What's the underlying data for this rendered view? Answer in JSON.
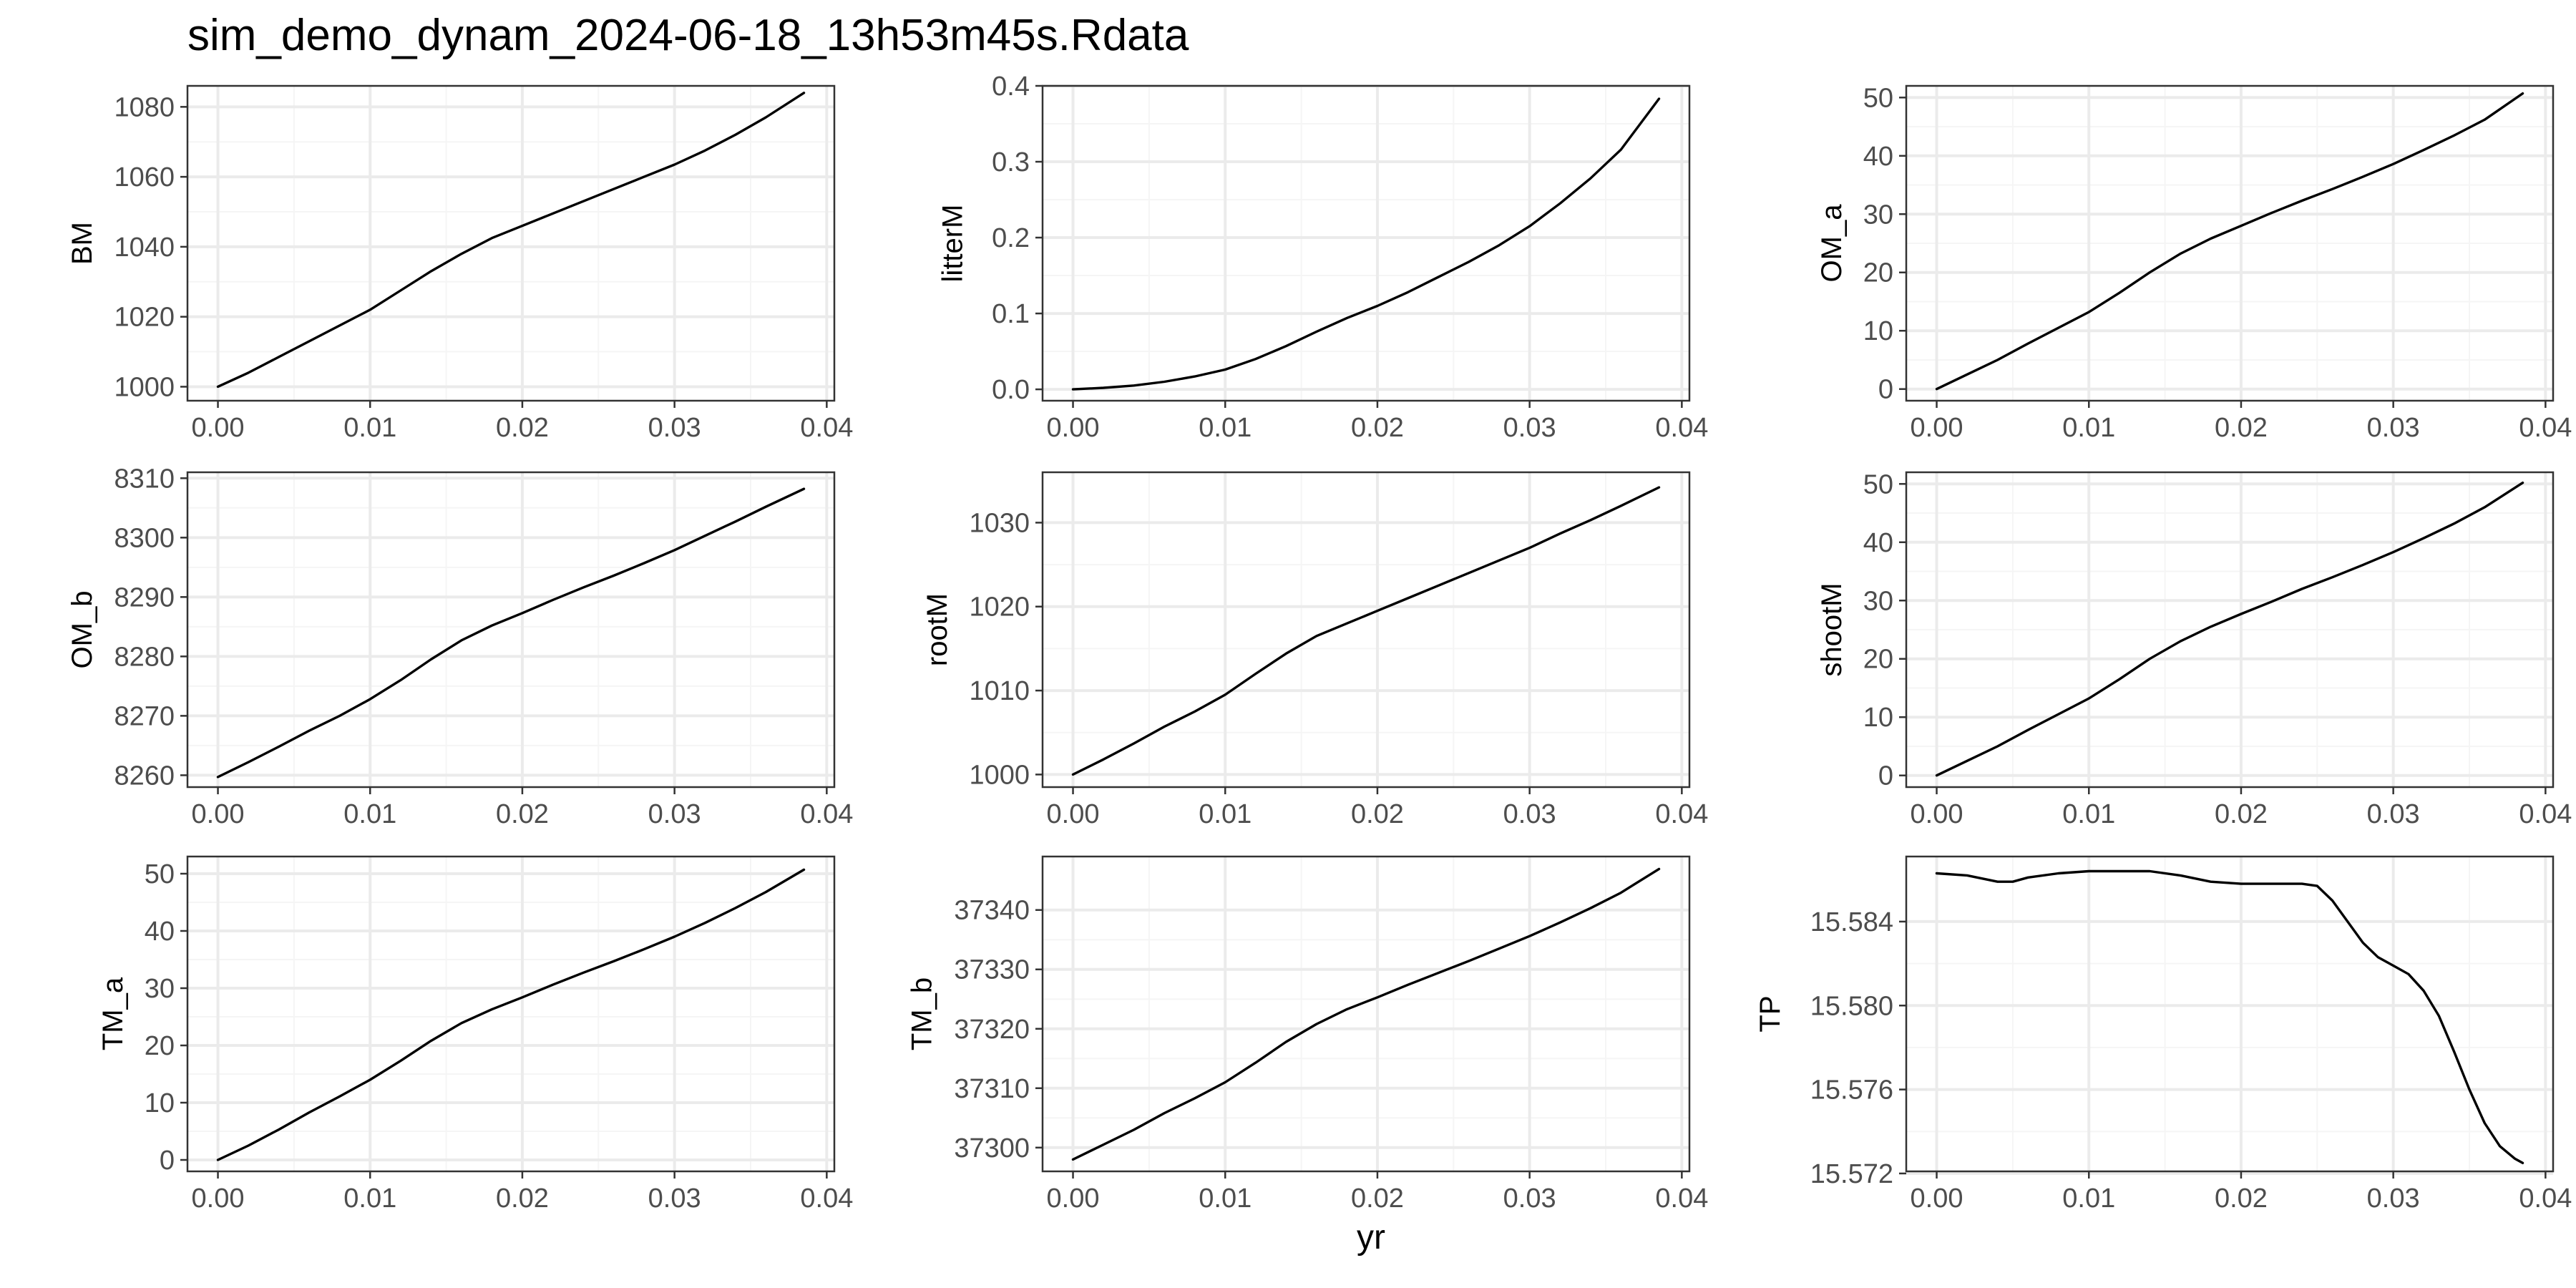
{
  "title": "sim_demo_dynam_2024-06-18_13h53m45s.Rdata",
  "colors": {
    "panel_background": "#ffffff",
    "panel_border": "#333333",
    "grid_major": "#ebebeb",
    "grid_minor": "#f5f5f5",
    "line": "#000000",
    "tick_text": "#4d4d4d"
  },
  "chart_data": {
    "type": "line",
    "layout": "facet-grid-3x3",
    "xlabel": "yr",
    "shared_x": {
      "ticks": [
        0.0,
        0.01,
        0.02,
        0.03,
        0.04
      ],
      "tick_labels": [
        "0.00",
        "0.01",
        "0.02",
        "0.03",
        "0.04"
      ],
      "xlim": [
        -0.002,
        0.0405
      ]
    },
    "panels": [
      {
        "ylabel": "BM",
        "ylim": [
          996,
          1086
        ],
        "yticks": [
          1000,
          1020,
          1040,
          1060,
          1080
        ],
        "ytick_labels": [
          "1000",
          "1020",
          "1040",
          "1060",
          "1080"
        ],
        "x": [
          0,
          0.002,
          0.004,
          0.006,
          0.008,
          0.01,
          0.012,
          0.014,
          0.016,
          0.018,
          0.02,
          0.022,
          0.024,
          0.026,
          0.028,
          0.03,
          0.032,
          0.034,
          0.036,
          0.0385
        ],
        "y": [
          1000,
          1004,
          1008.5,
          1013,
          1017.5,
          1022,
          1027.5,
          1033,
          1038,
          1042.5,
          1046,
          1049.5,
          1053,
          1056.5,
          1060,
          1063.5,
          1067.5,
          1072,
          1077,
          1084
        ]
      },
      {
        "ylabel": "litterM",
        "ylim": [
          -0.015,
          0.4
        ],
        "yticks": [
          0.0,
          0.1,
          0.2,
          0.3,
          0.4
        ],
        "ytick_labels": [
          "0.0",
          "0.1",
          "0.2",
          "0.3",
          "0.4"
        ],
        "x": [
          0,
          0.002,
          0.004,
          0.006,
          0.008,
          0.01,
          0.012,
          0.014,
          0.016,
          0.018,
          0.02,
          0.022,
          0.024,
          0.026,
          0.028,
          0.03,
          0.032,
          0.034,
          0.036,
          0.0385
        ],
        "y": [
          0,
          0.002,
          0.005,
          0.01,
          0.017,
          0.026,
          0.04,
          0.057,
          0.076,
          0.094,
          0.11,
          0.128,
          0.148,
          0.168,
          0.19,
          0.215,
          0.245,
          0.278,
          0.316,
          0.383
        ]
      },
      {
        "ylabel": "OM_a",
        "ylim": [
          -2,
          52
        ],
        "yticks": [
          0,
          10,
          20,
          30,
          40,
          50
        ],
        "ytick_labels": [
          "0",
          "10",
          "20",
          "30",
          "40",
          "50"
        ],
        "x": [
          0,
          0.002,
          0.004,
          0.006,
          0.008,
          0.01,
          0.012,
          0.014,
          0.016,
          0.018,
          0.02,
          0.022,
          0.024,
          0.026,
          0.028,
          0.03,
          0.032,
          0.034,
          0.036,
          0.0385
        ],
        "y": [
          0,
          2.5,
          5,
          7.8,
          10.5,
          13.2,
          16.5,
          20,
          23.2,
          25.8,
          28,
          30.2,
          32.3,
          34.3,
          36.4,
          38.6,
          41,
          43.5,
          46.2,
          50.7
        ]
      },
      {
        "ylabel": "OM_b",
        "ylim": [
          8258,
          8311
        ],
        "yticks": [
          8260,
          8270,
          8280,
          8290,
          8300,
          8310
        ],
        "ytick_labels": [
          "8260",
          "8270",
          "8280",
          "8290",
          "8300",
          "8310"
        ],
        "x": [
          0,
          0.002,
          0.004,
          0.006,
          0.008,
          0.01,
          0.012,
          0.014,
          0.016,
          0.018,
          0.02,
          0.022,
          0.024,
          0.026,
          0.028,
          0.03,
          0.032,
          0.034,
          0.036,
          0.0385
        ],
        "y": [
          8259.7,
          8262.2,
          8264.8,
          8267.5,
          8270,
          8272.8,
          8276,
          8279.5,
          8282.7,
          8285.2,
          8287.3,
          8289.5,
          8291.6,
          8293.6,
          8295.7,
          8297.9,
          8300.3,
          8302.7,
          8305.2,
          8308.2
        ]
      },
      {
        "ylabel": "rootM",
        "ylim": [
          998.5,
          1036
        ],
        "yticks": [
          1000,
          1010,
          1020,
          1030
        ],
        "ytick_labels": [
          "1000",
          "1010",
          "1020",
          "1030"
        ],
        "x": [
          0,
          0.002,
          0.004,
          0.006,
          0.008,
          0.01,
          0.012,
          0.014,
          0.016,
          0.018,
          0.02,
          0.022,
          0.024,
          0.026,
          0.028,
          0.03,
          0.032,
          0.034,
          0.036,
          0.0385
        ],
        "y": [
          1000,
          1001.8,
          1003.7,
          1005.7,
          1007.5,
          1009.5,
          1012,
          1014.4,
          1016.5,
          1018,
          1019.5,
          1021,
          1022.5,
          1024,
          1025.5,
          1027,
          1028.7,
          1030.3,
          1032,
          1034.2
        ]
      },
      {
        "ylabel": "shootM",
        "ylim": [
          -2,
          52
        ],
        "yticks": [
          0,
          10,
          20,
          30,
          40,
          50
        ],
        "ytick_labels": [
          "0",
          "10",
          "20",
          "30",
          "40",
          "50"
        ],
        "x": [
          0,
          0.002,
          0.004,
          0.006,
          0.008,
          0.01,
          0.012,
          0.014,
          0.016,
          0.018,
          0.02,
          0.022,
          0.024,
          0.026,
          0.028,
          0.03,
          0.032,
          0.034,
          0.036,
          0.0385
        ],
        "y": [
          0,
          2.5,
          5,
          7.8,
          10.5,
          13.2,
          16.5,
          20,
          23,
          25.5,
          27.7,
          29.8,
          32,
          34,
          36.1,
          38.3,
          40.7,
          43.2,
          46,
          50.2
        ]
      },
      {
        "ylabel": "TM_a",
        "ylim": [
          -2,
          53
        ],
        "yticks": [
          0,
          10,
          20,
          30,
          40,
          50
        ],
        "ytick_labels": [
          "0",
          "10",
          "20",
          "30",
          "40",
          "50"
        ],
        "x": [
          0,
          0.002,
          0.004,
          0.006,
          0.008,
          0.01,
          0.012,
          0.014,
          0.016,
          0.018,
          0.02,
          0.022,
          0.024,
          0.026,
          0.028,
          0.03,
          0.032,
          0.034,
          0.036,
          0.0385
        ],
        "y": [
          0,
          2.5,
          5.3,
          8.3,
          11.1,
          14,
          17.3,
          20.8,
          23.9,
          26.3,
          28.4,
          30.6,
          32.7,
          34.7,
          36.8,
          39,
          41.4,
          44,
          46.8,
          50.7
        ]
      },
      {
        "ylabel": "TM_b",
        "ylim": [
          37296,
          37349
        ],
        "yticks": [
          37300,
          37310,
          37320,
          37330,
          37340
        ],
        "ytick_labels": [
          "37300",
          "37310",
          "37320",
          "37330",
          "37340"
        ],
        "x": [
          0,
          0.002,
          0.004,
          0.006,
          0.008,
          0.01,
          0.012,
          0.014,
          0.016,
          0.018,
          0.02,
          0.022,
          0.024,
          0.026,
          0.028,
          0.03,
          0.032,
          0.034,
          0.036,
          0.0385
        ],
        "y": [
          37298,
          37300.5,
          37303,
          37305.8,
          37308.3,
          37311,
          37314.3,
          37317.8,
          37320.8,
          37323.3,
          37325.3,
          37327.4,
          37329.4,
          37331.4,
          37333.5,
          37335.6,
          37337.9,
          37340.3,
          37342.9,
          37346.9
        ]
      },
      {
        "ylabel": "TP",
        "ylim": [
          15.5721,
          15.5871
        ],
        "yticks": [
          15.572,
          15.576,
          15.58,
          15.584
        ],
        "ytick_labels": [
          "15.572",
          "15.576",
          "15.580",
          "15.584"
        ],
        "x": [
          0,
          0.002,
          0.004,
          0.005,
          0.006,
          0.008,
          0.01,
          0.012,
          0.014,
          0.016,
          0.018,
          0.02,
          0.022,
          0.024,
          0.025,
          0.026,
          0.027,
          0.028,
          0.029,
          0.03,
          0.031,
          0.032,
          0.033,
          0.034,
          0.035,
          0.036,
          0.037,
          0.038,
          0.0385
        ],
        "y": [
          15.5863,
          15.5862,
          15.5859,
          15.5859,
          15.5861,
          15.5863,
          15.5864,
          15.5864,
          15.5864,
          15.5862,
          15.5859,
          15.5858,
          15.5858,
          15.5858,
          15.5857,
          15.585,
          15.584,
          15.583,
          15.5823,
          15.5819,
          15.5815,
          15.5807,
          15.5795,
          15.5778,
          15.576,
          15.5744,
          15.5733,
          15.5727,
          15.5725
        ]
      }
    ]
  }
}
